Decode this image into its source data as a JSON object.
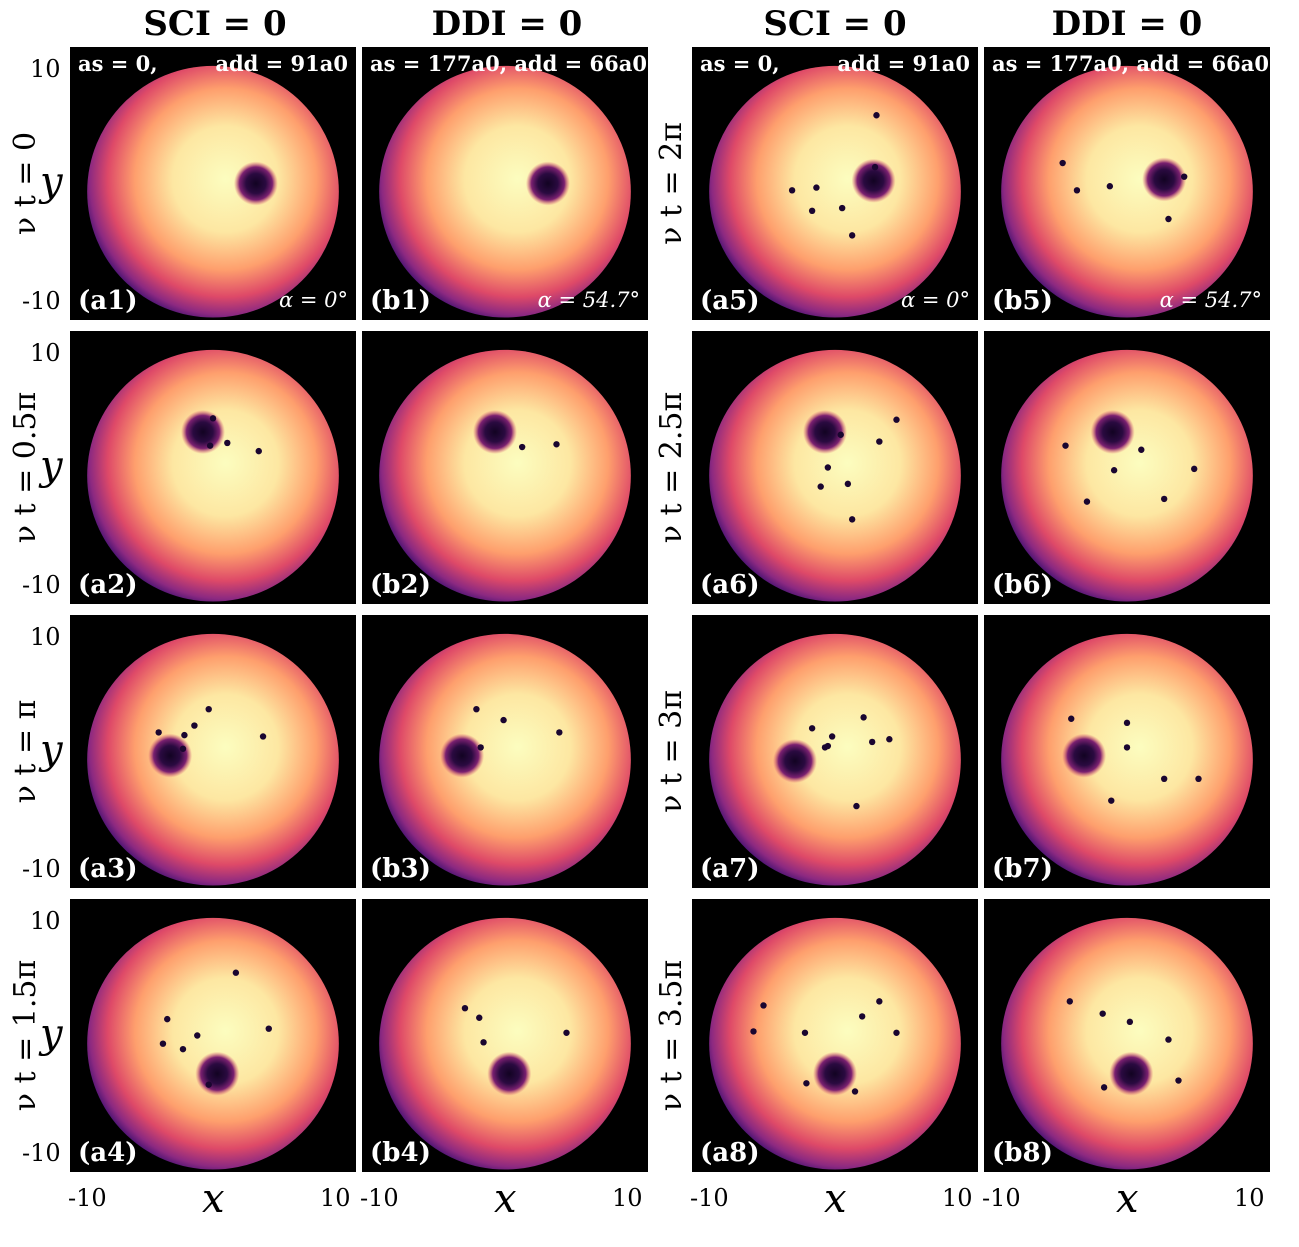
{
  "headers": [
    "SCI = 0",
    "DDI = 0",
    "SCI = 0",
    "DDI = 0"
  ],
  "row_labels_left": [
    "ν t = 0",
    "ν t = 0.5π",
    "ν t = π",
    "ν t = 1.5π"
  ],
  "row_labels_right": [
    "ν t = 2π",
    "ν t = 2.5π",
    "ν t = 3π",
    "ν t = 3.5π"
  ],
  "params": {
    "sci_left": "as = 0,",
    "sci_right": "add = 91a0",
    "ddi_text": "as = 177a0, add = 66a0",
    "alpha_sci": "α = 0°",
    "alpha_ddi": "α = 54.7°"
  },
  "axis": {
    "y_axis_label": "y",
    "x_axis_label": "x",
    "tick_min": "-10",
    "tick_max": "10"
  },
  "panels": [
    {
      "label": "(a1)"
    },
    {
      "label": "(b1)"
    },
    {
      "label": "(a5)"
    },
    {
      "label": "(b5)"
    },
    {
      "label": "(a2)"
    },
    {
      "label": "(b2)"
    },
    {
      "label": "(a6)"
    },
    {
      "label": "(b6)"
    },
    {
      "label": "(a3)"
    },
    {
      "label": "(b3)"
    },
    {
      "label": "(a7)"
    },
    {
      "label": "(b7)"
    },
    {
      "label": "(a4)"
    },
    {
      "label": "(b4)"
    },
    {
      "label": "(a8)"
    },
    {
      "label": "(b8)"
    }
  ],
  "colormap": [
    "#000000",
    "#3b0f70",
    "#8c2981",
    "#de4968",
    "#fe9f6d",
    "#fcfdbf"
  ],
  "density_data": {
    "axis_range": [
      -10,
      10
    ],
    "cloud_radius": 8.8,
    "clouds": [
      {
        "cx": 0.0,
        "cy": -0.6,
        "vortex": [
          3.0,
          0.0
        ],
        "small": []
      },
      {
        "cx": 0.0,
        "cy": -0.6,
        "vortex": [
          3.0,
          0.0
        ],
        "small": []
      },
      {
        "cx": 0.0,
        "cy": -0.6,
        "vortex": [
          2.7,
          0.2
        ],
        "small": [
          [
            -3.0,
            -0.5
          ],
          [
            -1.3,
            -0.3
          ],
          [
            -1.6,
            -2.0
          ],
          [
            0.5,
            -1.8
          ],
          [
            1.2,
            -3.8
          ],
          [
            2.9,
            5.0
          ],
          [
            2.8,
            1.2
          ]
        ]
      },
      {
        "cx": 0.0,
        "cy": -0.6,
        "vortex": [
          2.6,
          0.3
        ],
        "small": [
          [
            -4.5,
            1.5
          ],
          [
            -3.5,
            -0.5
          ],
          [
            -1.2,
            -0.2
          ],
          [
            4.0,
            0.5
          ],
          [
            2.9,
            -2.6
          ]
        ]
      },
      {
        "cx": 0.0,
        "cy": -0.6,
        "vortex": [
          -0.7,
          2.6
        ],
        "small": [
          [
            0.0,
            3.6
          ],
          [
            1.0,
            1.8
          ],
          [
            3.2,
            1.2
          ],
          [
            -0.2,
            1.6
          ]
        ]
      },
      {
        "cx": 0.0,
        "cy": -0.6,
        "vortex": [
          -0.7,
          2.6
        ],
        "small": [
          [
            1.2,
            1.5
          ],
          [
            3.6,
            1.7
          ]
        ]
      },
      {
        "cx": 0.0,
        "cy": -0.6,
        "vortex": [
          -0.7,
          2.6
        ],
        "small": [
          [
            0.4,
            2.4
          ],
          [
            3.1,
            1.9
          ],
          [
            4.3,
            3.5
          ],
          [
            -0.5,
            0.0
          ],
          [
            -1.0,
            -1.4
          ],
          [
            0.9,
            -1.2
          ],
          [
            1.2,
            -3.8
          ]
        ]
      },
      {
        "cx": 0.0,
        "cy": -0.6,
        "vortex": [
          -1.0,
          2.6
        ],
        "small": [
          [
            -4.3,
            1.6
          ],
          [
            1.0,
            1.3
          ],
          [
            -0.9,
            -0.2
          ],
          [
            4.7,
            -0.1
          ],
          [
            2.6,
            -2.3
          ],
          [
            -2.8,
            -2.5
          ]
        ]
      },
      {
        "cx": 0.0,
        "cy": -0.6,
        "vortex": [
          -3.0,
          -0.3
        ],
        "small": [
          [
            -0.3,
            3.1
          ],
          [
            -1.3,
            1.9
          ],
          [
            -3.8,
            1.4
          ],
          [
            -2.0,
            1.2
          ],
          [
            3.5,
            1.1
          ],
          [
            -2.1,
            0.2
          ]
        ]
      },
      {
        "cx": 0.0,
        "cy": -0.6,
        "vortex": [
          -3.0,
          -0.3
        ],
        "small": [
          [
            -2.0,
            3.1
          ],
          [
            -0.1,
            2.3
          ],
          [
            3.8,
            1.4
          ],
          [
            -1.7,
            0.3
          ]
        ]
      },
      {
        "cx": 0.0,
        "cy": -0.6,
        "vortex": [
          -2.8,
          -0.7
        ],
        "small": [
          [
            -1.6,
            1.7
          ],
          [
            -0.7,
            0.3
          ],
          [
            -0.2,
            1.1
          ],
          [
            -0.5,
            0.4
          ],
          [
            2.0,
            2.5
          ],
          [
            2.6,
            0.7
          ],
          [
            3.8,
            0.9
          ],
          [
            1.5,
            -4.0
          ]
        ]
      },
      {
        "cx": 0.0,
        "cy": -0.6,
        "vortex": [
          -3.0,
          -0.3
        ],
        "small": [
          [
            -3.9,
            2.4
          ],
          [
            0.0,
            2.1
          ],
          [
            0.0,
            0.3
          ],
          [
            2.6,
            -2.0
          ],
          [
            5.0,
            -2.0
          ],
          [
            -1.1,
            -3.6
          ]
        ]
      },
      {
        "cx": 0.0,
        "cy": -0.6,
        "vortex": [
          0.3,
          -2.8
        ],
        "small": [
          [
            1.6,
            4.6
          ],
          [
            -3.2,
            1.2
          ],
          [
            -1.1,
            0.0
          ],
          [
            -3.5,
            -0.6
          ],
          [
            -2.1,
            -1.0
          ],
          [
            3.9,
            0.5
          ],
          [
            -0.3,
            -3.6
          ]
        ]
      },
      {
        "cx": 0.0,
        "cy": -0.6,
        "vortex": [
          0.3,
          -2.8
        ],
        "small": [
          [
            -2.8,
            2.0
          ],
          [
            -1.8,
            1.3
          ],
          [
            -1.5,
            -0.5
          ],
          [
            4.3,
            0.2
          ]
        ]
      },
      {
        "cx": 0.0,
        "cy": -0.6,
        "vortex": [
          0.0,
          -2.8
        ],
        "small": [
          [
            -5.7,
            0.3
          ],
          [
            -5.0,
            2.2
          ],
          [
            -2.1,
            0.2
          ],
          [
            1.9,
            1.4
          ],
          [
            3.1,
            2.5
          ],
          [
            4.3,
            0.2
          ],
          [
            -2.0,
            -3.5
          ],
          [
            1.4,
            -4.1
          ]
        ]
      },
      {
        "cx": 0.0,
        "cy": -0.6,
        "vortex": [
          0.3,
          -2.8
        ],
        "small": [
          [
            -4.0,
            2.5
          ],
          [
            -1.7,
            1.6
          ],
          [
            0.2,
            1.0
          ],
          [
            2.9,
            -0.3
          ],
          [
            3.6,
            -3.3
          ],
          [
            -1.6,
            -3.8
          ]
        ]
      }
    ]
  }
}
